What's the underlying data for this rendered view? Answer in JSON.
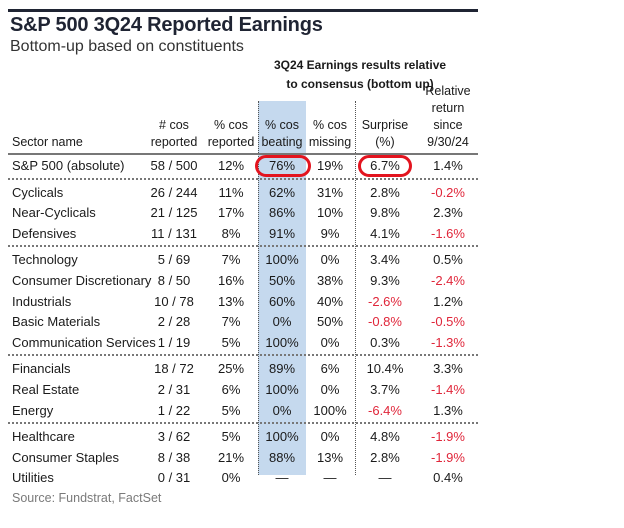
{
  "title": "S&P 500 3Q24 Reported Earnings",
  "subtitle": "Bottom-up based on constituents",
  "group_header": [
    "3Q24 Earnings results relative",
    "to consensus (bottom up)"
  ],
  "columns": {
    "sector": [
      "Sector name"
    ],
    "reported_n": [
      "# cos",
      "reported"
    ],
    "reported_pct": [
      "% cos",
      "reported"
    ],
    "beating": [
      "% cos",
      "beating"
    ],
    "missing": [
      "% cos",
      "missing"
    ],
    "surprise": [
      "Surprise",
      "(%)"
    ],
    "relret": [
      "Relative",
      "return since",
      "9/30/24"
    ]
  },
  "colors": {
    "highlight": "#c5d9ee",
    "negative": "#e0263a",
    "circle": "#e3141f"
  },
  "groups": [
    {
      "rows": [
        {
          "name": "S&P 500 (absolute)",
          "reported_n": "58 / 500",
          "reported_pct": "12%",
          "beating": "76%",
          "missing": "19%",
          "surprise": "6.7%",
          "relret": "1.4%"
        }
      ]
    },
    {
      "rows": [
        {
          "name": "Cyclicals",
          "reported_n": "26 / 244",
          "reported_pct": "11%",
          "beating": "62%",
          "missing": "31%",
          "surprise": "2.8%",
          "relret": "-0.2%"
        },
        {
          "name": "Near-Cyclicals",
          "reported_n": "21 / 125",
          "reported_pct": "17%",
          "beating": "86%",
          "missing": "10%",
          "surprise": "9.8%",
          "relret": "2.3%"
        },
        {
          "name": "Defensives",
          "reported_n": "11 / 131",
          "reported_pct": "8%",
          "beating": "91%",
          "missing": "9%",
          "surprise": "4.1%",
          "relret": "-1.6%"
        }
      ]
    },
    {
      "rows": [
        {
          "name": "Technology",
          "reported_n": "5 / 69",
          "reported_pct": "7%",
          "beating": "100%",
          "missing": "0%",
          "surprise": "3.4%",
          "relret": "0.5%"
        },
        {
          "name": "Consumer Discretionary",
          "reported_n": "8 / 50",
          "reported_pct": "16%",
          "beating": "50%",
          "missing": "38%",
          "surprise": "9.3%",
          "relret": "-2.4%"
        },
        {
          "name": "Industrials",
          "reported_n": "10 / 78",
          "reported_pct": "13%",
          "beating": "60%",
          "missing": "40%",
          "surprise": "-2.6%",
          "relret": "1.2%"
        },
        {
          "name": "Basic Materials",
          "reported_n": "2 / 28",
          "reported_pct": "7%",
          "beating": "0%",
          "missing": "50%",
          "surprise": "-0.8%",
          "relret": "-0.5%"
        },
        {
          "name": "Communication Services",
          "reported_n": "1 / 19",
          "reported_pct": "5%",
          "beating": "100%",
          "missing": "0%",
          "surprise": "0.3%",
          "relret": "-1.3%"
        }
      ]
    },
    {
      "rows": [
        {
          "name": "Financials",
          "reported_n": "18 / 72",
          "reported_pct": "25%",
          "beating": "89%",
          "missing": "6%",
          "surprise": "10.4%",
          "relret": "3.3%"
        },
        {
          "name": "Real Estate",
          "reported_n": "2 / 31",
          "reported_pct": "6%",
          "beating": "100%",
          "missing": "0%",
          "surprise": "3.7%",
          "relret": "-1.4%"
        },
        {
          "name": "Energy",
          "reported_n": "1 / 22",
          "reported_pct": "5%",
          "beating": "0%",
          "missing": "100%",
          "surprise": "-6.4%",
          "relret": "1.3%"
        }
      ]
    },
    {
      "rows": [
        {
          "name": "Healthcare",
          "reported_n": "3 / 62",
          "reported_pct": "5%",
          "beating": "100%",
          "missing": "0%",
          "surprise": "4.8%",
          "relret": "-1.9%"
        },
        {
          "name": "Consumer Staples",
          "reported_n": "8 / 38",
          "reported_pct": "21%",
          "beating": "88%",
          "missing": "13%",
          "surprise": "2.8%",
          "relret": "-1.9%"
        },
        {
          "name": "Utilities",
          "reported_n": "0 / 31",
          "reported_pct": "0%",
          "beating": "—",
          "missing": "—",
          "surprise": "—",
          "relret": "0.4%"
        }
      ]
    }
  ],
  "source": "Source: Fundstrat, FactSet"
}
